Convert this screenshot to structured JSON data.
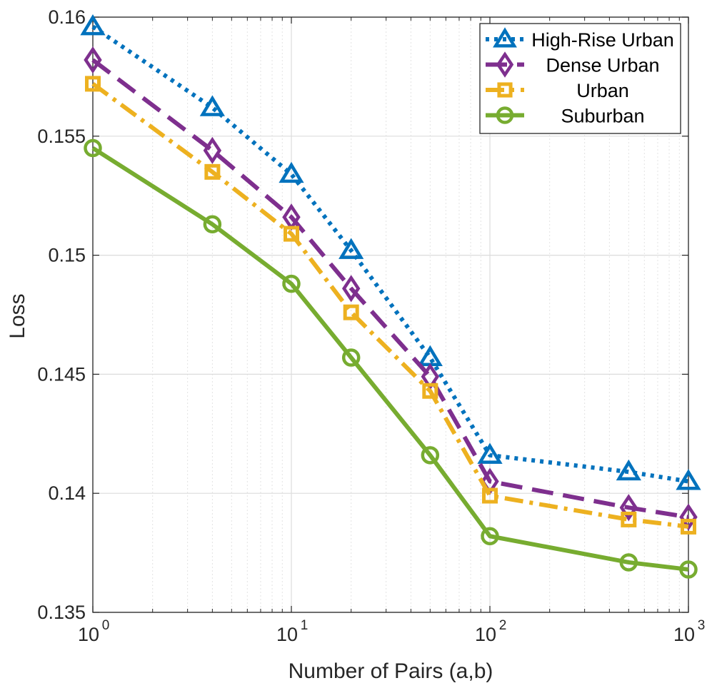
{
  "chart_data": {
    "type": "line",
    "title": "",
    "xlabel": "Number of Pairs (a,b)",
    "ylabel": "Loss",
    "xscale": "log",
    "xlim": [
      1,
      1000
    ],
    "ylim": [
      0.135,
      0.16
    ],
    "grid": true,
    "legend_position": "top-right",
    "x": [
      1,
      4,
      10,
      20,
      50,
      100,
      500,
      1000
    ],
    "x_ticks": [
      {
        "base": "10",
        "exp": "0",
        "value": 1
      },
      {
        "base": "10",
        "exp": "1",
        "value": 10
      },
      {
        "base": "10",
        "exp": "2",
        "value": 100
      },
      {
        "base": "10",
        "exp": "3",
        "value": 1000
      }
    ],
    "y_ticks": [
      {
        "label": "0.135",
        "value": 0.135
      },
      {
        "label": "0.14",
        "value": 0.14
      },
      {
        "label": "0.145",
        "value": 0.145
      },
      {
        "label": "0.15",
        "value": 0.15
      },
      {
        "label": "0.155",
        "value": 0.155
      },
      {
        "label": "0.16",
        "value": 0.16
      }
    ],
    "series": [
      {
        "name": "High-Rise Urban",
        "color": "#0072BD",
        "line_style": "dotted",
        "marker": "triangle",
        "values": [
          0.1596,
          0.1562,
          0.1534,
          0.1502,
          0.1457,
          0.1416,
          0.1409,
          0.1405
        ]
      },
      {
        "name": "Dense Urban",
        "color": "#7E2F8E",
        "line_style": "dashed",
        "marker": "diamond",
        "values": [
          0.1582,
          0.1544,
          0.1516,
          0.1486,
          0.1449,
          0.1405,
          0.1394,
          0.139
        ]
      },
      {
        "name": "Urban",
        "color": "#EDB120",
        "line_style": "dashdot",
        "marker": "square",
        "values": [
          0.1572,
          0.1535,
          0.1509,
          0.1476,
          0.1443,
          0.1399,
          0.1389,
          0.1386
        ]
      },
      {
        "name": "Suburban",
        "color": "#77AC30",
        "line_style": "solid",
        "marker": "circle",
        "values": [
          0.1545,
          0.1513,
          0.1488,
          0.1457,
          0.1416,
          0.1382,
          0.1371,
          0.1368
        ]
      }
    ]
  }
}
